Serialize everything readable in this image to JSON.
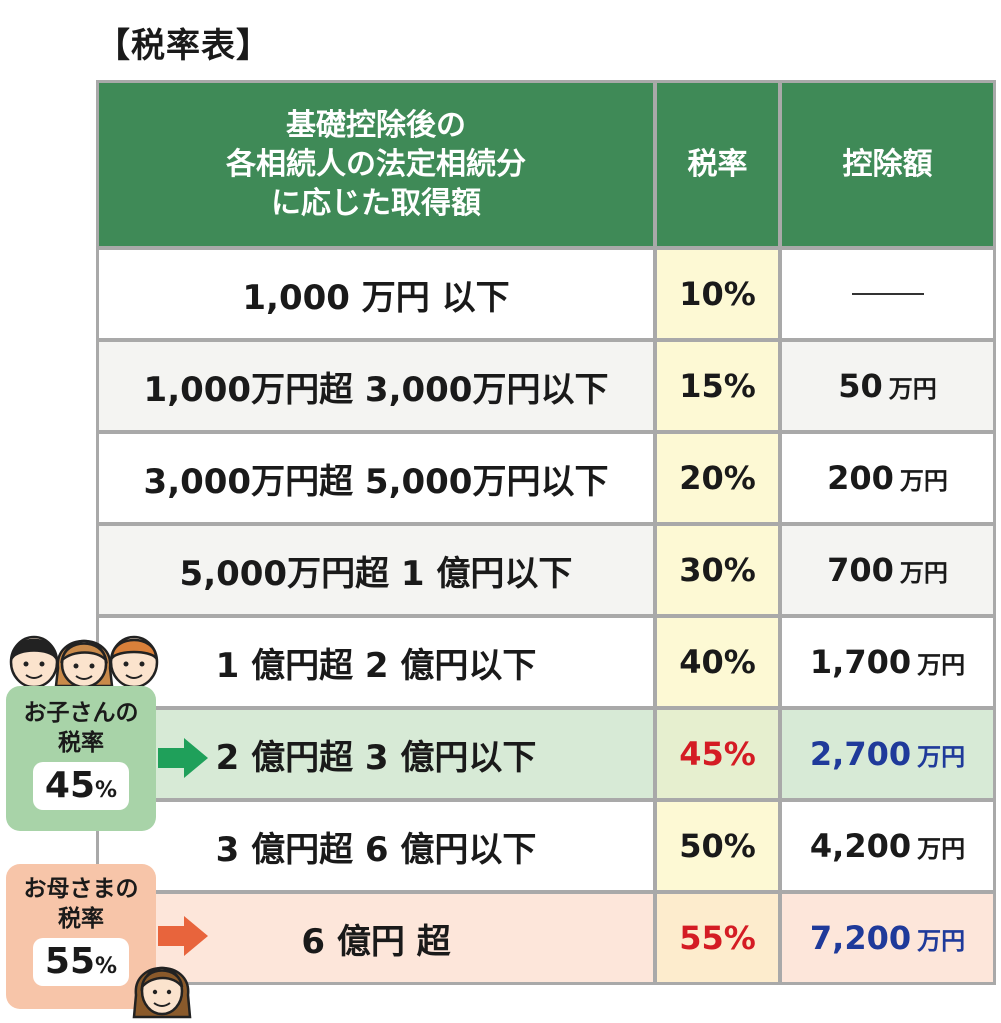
{
  "title": "【税率表】",
  "header": {
    "col1_lines": [
      "基礎控除後の",
      "各相続人の法定相続分",
      "に応じた取得額"
    ],
    "col2": "税率",
    "col3": "控除額"
  },
  "rows": [
    {
      "amount": "1,000 万円 以下",
      "rate": "10%",
      "deduction": "",
      "deduction_unit": "",
      "bg": "#ffffff"
    },
    {
      "amount": "1,000万円超 3,000万円以下",
      "rate": "15%",
      "deduction": "50",
      "deduction_unit": "万円",
      "bg": "#f4f4f2"
    },
    {
      "amount": "3,000万円超 5,000万円以下",
      "rate": "20%",
      "deduction": "200",
      "deduction_unit": "万円",
      "bg": "#ffffff"
    },
    {
      "amount": "5,000万円超 1 億円以下",
      "rate": "30%",
      "deduction": "700",
      "deduction_unit": "万円",
      "bg": "#f4f4f2"
    },
    {
      "amount": "1 億円超 2 億円以下",
      "rate": "40%",
      "deduction": "1,700",
      "deduction_unit": "万円",
      "bg": "#ffffff"
    },
    {
      "amount": "2 億円超 3 億円以下",
      "rate": "45%",
      "deduction": "2,700",
      "deduction_unit": "万円",
      "bg": "#d7ead6"
    },
    {
      "amount": "3 億円超 6 億円以下",
      "rate": "50%",
      "deduction": "4,200",
      "deduction_unit": "万円",
      "bg": "#ffffff"
    },
    {
      "amount": "6 億円 超",
      "rate": "55%",
      "deduction": "7,200",
      "deduction_unit": "万円",
      "bg": "#fde6da"
    }
  ],
  "badges": {
    "child": {
      "label_lines": [
        "お子さんの",
        "税率"
      ],
      "value": "45",
      "unit": "%"
    },
    "mother": {
      "label_lines": [
        "お母さまの",
        "税率"
      ],
      "value": "55",
      "unit": "%"
    }
  },
  "colors": {
    "header_green": "#3f8a57",
    "rate_column_yellow": "#fdf9d4",
    "highlight_red": "#d41c24",
    "highlight_blue": "#1f3a9a",
    "child_arrow_green": "#1fa05a",
    "mother_arrow_orange": "#e8643c"
  },
  "icons": {
    "children_faces": "three-children-faces-icon",
    "mother_face": "mother-face-icon",
    "child_arrow": "arrow-right-icon",
    "mother_arrow": "arrow-right-icon"
  }
}
